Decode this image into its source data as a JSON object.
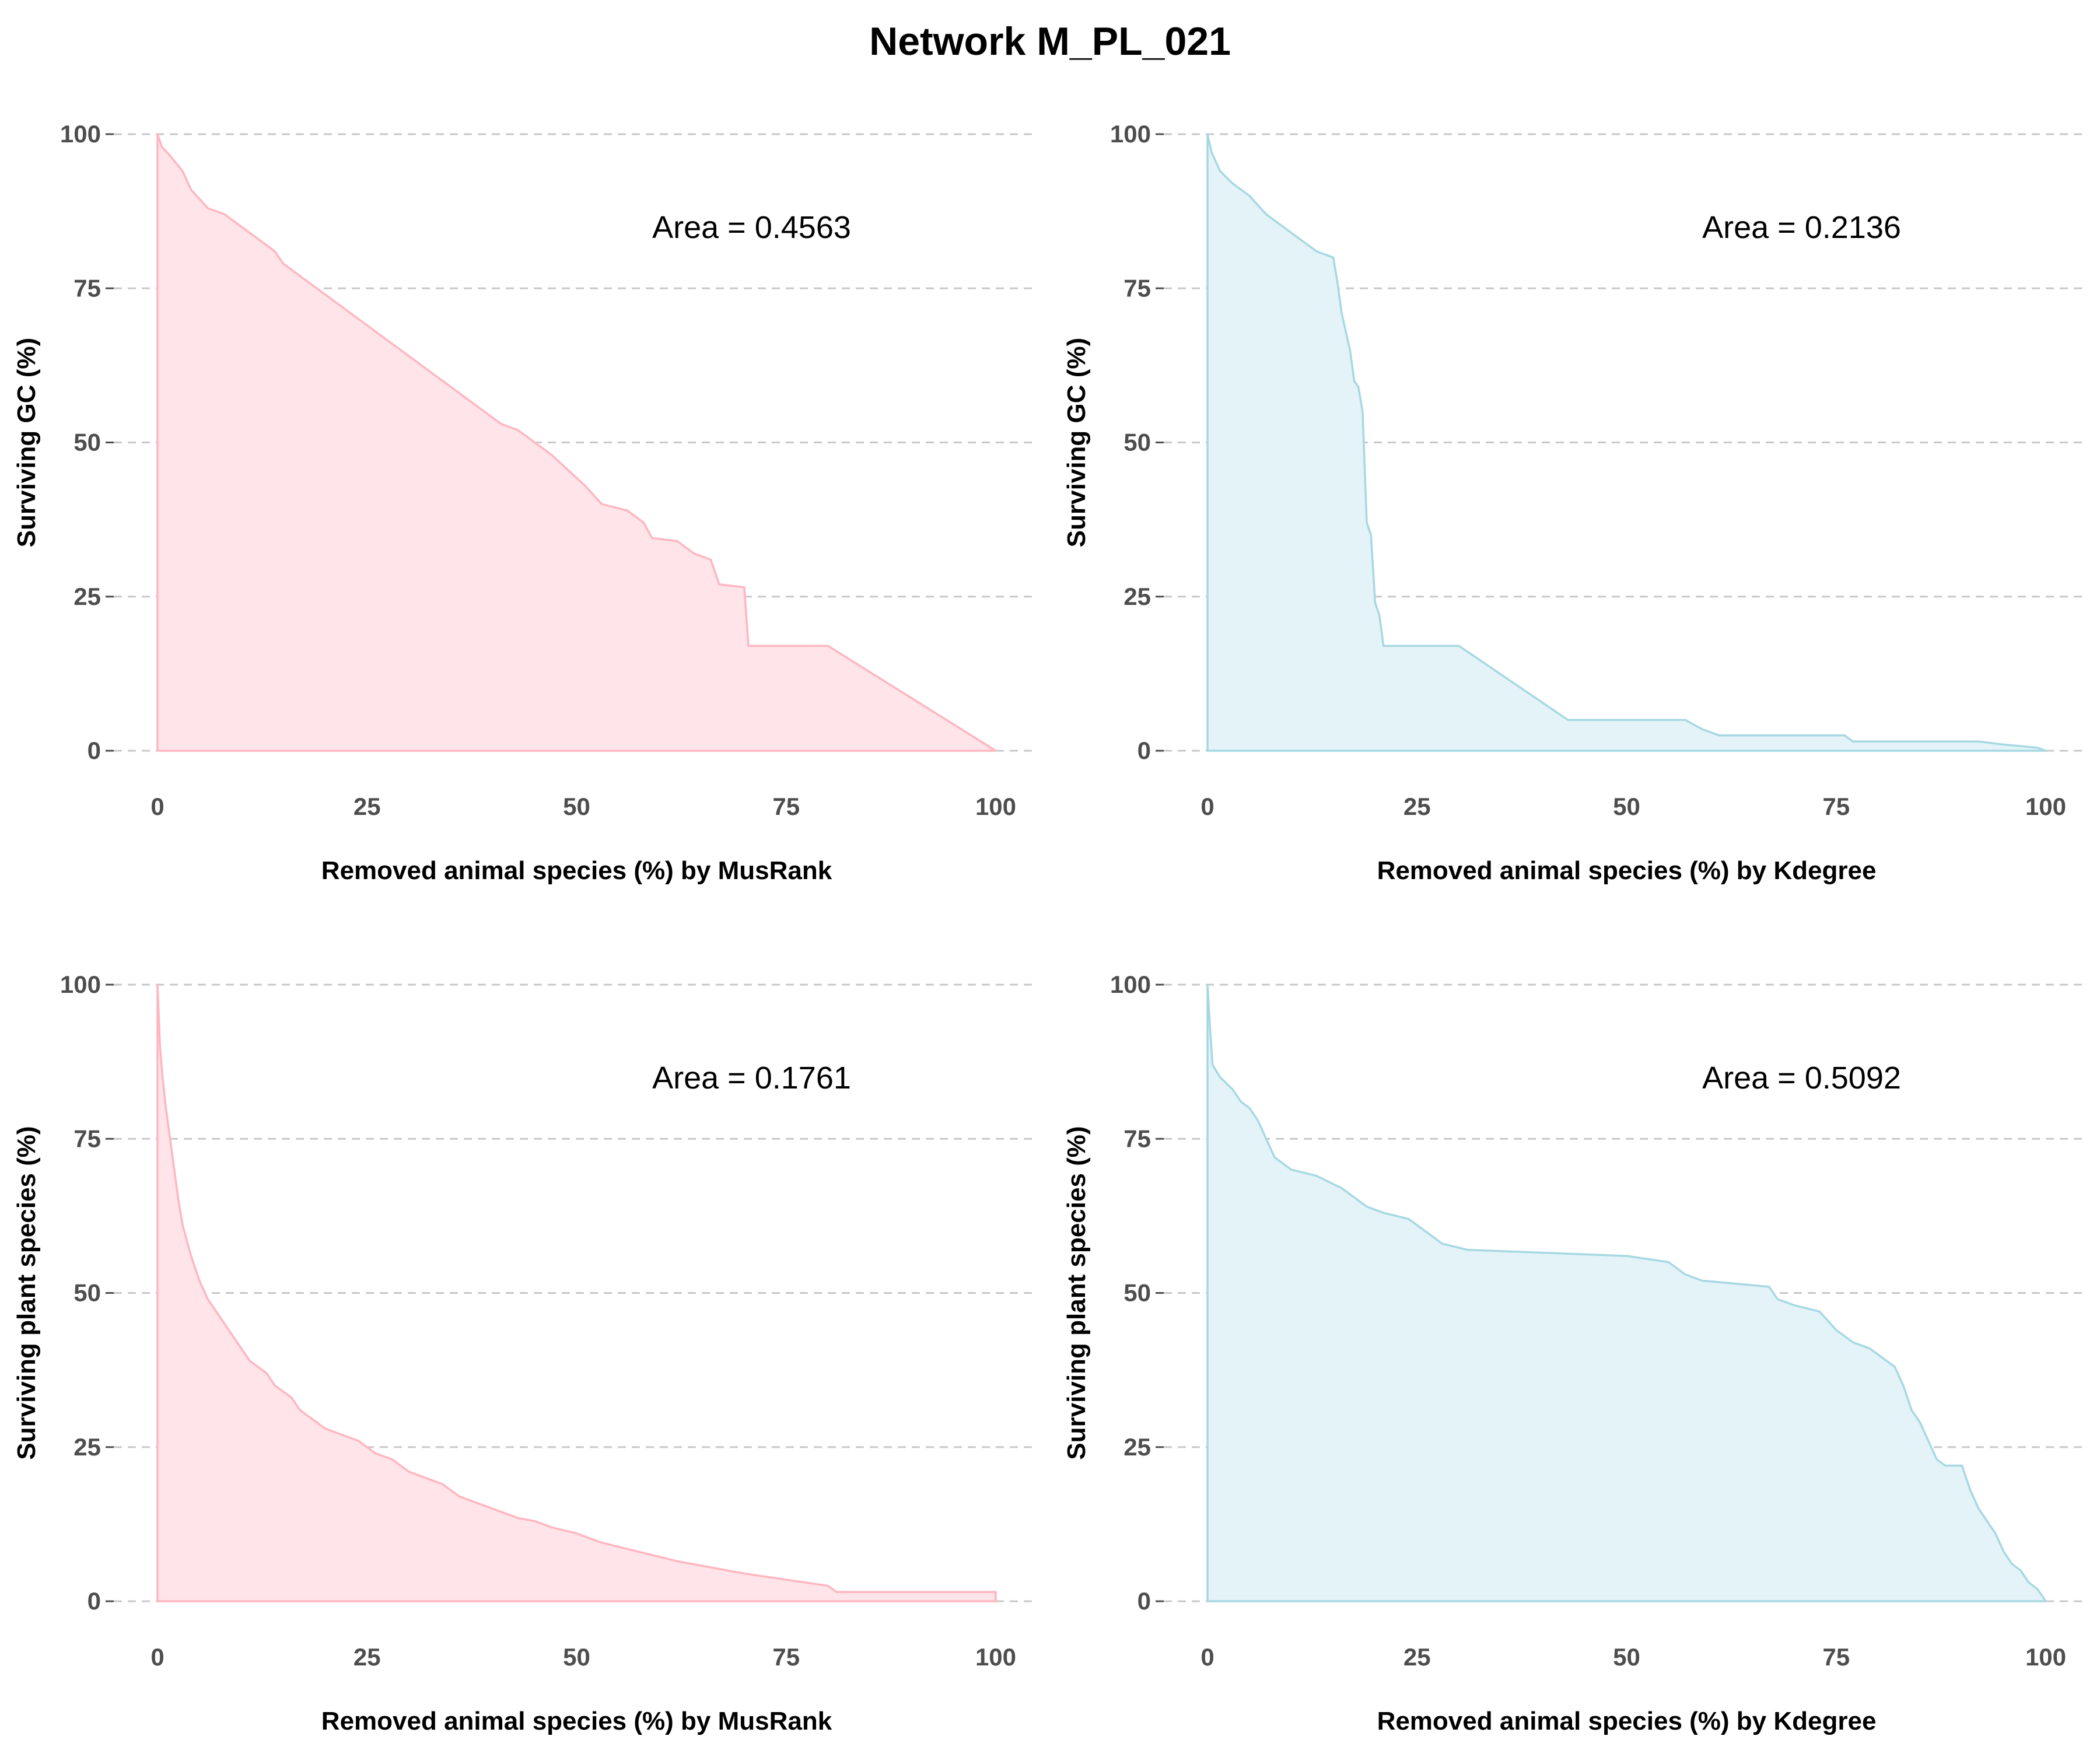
{
  "figure_title": "Network M_PL_021",
  "chart_data": [
    {
      "type": "area",
      "area_label": "Area = 0.4563",
      "xlabel": "Removed animal species (%) by MusRank",
      "ylabel": "Surviving GC (%)",
      "xlim": [
        0,
        100
      ],
      "ylim": [
        0,
        100
      ],
      "xticks": [
        "0",
        "25",
        "50",
        "75",
        "100"
      ],
      "yticks": [
        "0",
        "25",
        "50",
        "75",
        "100"
      ],
      "grid": "horizontal dashed",
      "color": "#ffb6c1",
      "fill": "#ffe4e9",
      "points": [
        [
          0,
          100
        ],
        [
          0.5,
          98
        ],
        [
          1.5,
          96.5
        ],
        [
          3,
          94
        ],
        [
          4,
          91
        ],
        [
          5,
          89.5
        ],
        [
          6,
          88
        ],
        [
          8,
          87
        ],
        [
          10,
          85
        ],
        [
          12,
          83
        ],
        [
          14,
          81
        ],
        [
          15,
          79
        ],
        [
          17,
          77
        ],
        [
          19,
          75
        ],
        [
          21,
          73
        ],
        [
          23,
          71
        ],
        [
          25,
          69
        ],
        [
          27,
          67
        ],
        [
          29,
          65
        ],
        [
          31,
          63
        ],
        [
          33,
          61
        ],
        [
          35,
          59
        ],
        [
          37,
          57
        ],
        [
          39,
          55
        ],
        [
          41,
          53
        ],
        [
          43,
          52
        ],
        [
          45,
          50
        ],
        [
          47,
          48
        ],
        [
          49,
          45.5
        ],
        [
          51,
          43
        ],
        [
          53,
          40
        ],
        [
          56,
          39
        ],
        [
          58,
          37
        ],
        [
          59,
          34.5
        ],
        [
          62,
          34
        ],
        [
          64,
          32
        ],
        [
          66,
          31
        ],
        [
          67,
          27
        ],
        [
          70,
          26.5
        ],
        [
          70.5,
          17
        ],
        [
          80,
          17
        ],
        [
          100,
          0
        ]
      ]
    },
    {
      "type": "area",
      "area_label": "Area = 0.2136",
      "xlabel": "Removed animal species (%) by Kdegree",
      "ylabel": "Surviving GC (%)",
      "xlim": [
        0,
        100
      ],
      "ylim": [
        0,
        100
      ],
      "xticks": [
        "0",
        "25",
        "50",
        "75",
        "100"
      ],
      "yticks": [
        "0",
        "25",
        "50",
        "75",
        "100"
      ],
      "grid": "horizontal dashed",
      "color": "#a6d8e3",
      "fill": "#e3f3f7",
      "points": [
        [
          0,
          100
        ],
        [
          0.5,
          97
        ],
        [
          1.5,
          94
        ],
        [
          3,
          92
        ],
        [
          5,
          90
        ],
        [
          7,
          87
        ],
        [
          10,
          84
        ],
        [
          13,
          81
        ],
        [
          15,
          80
        ],
        [
          15.5,
          76
        ],
        [
          16,
          71
        ],
        [
          17,
          65
        ],
        [
          17.5,
          60
        ],
        [
          18,
          59
        ],
        [
          18.5,
          55
        ],
        [
          19,
          37
        ],
        [
          19.5,
          35
        ],
        [
          20,
          24
        ],
        [
          20.5,
          22
        ],
        [
          21,
          17
        ],
        [
          30,
          17
        ],
        [
          43,
          5
        ],
        [
          57,
          5
        ],
        [
          59,
          3.5
        ],
        [
          61,
          2.5
        ],
        [
          76,
          2.5
        ],
        [
          77,
          1.5
        ],
        [
          92,
          1.5
        ],
        [
          95,
          1
        ],
        [
          99,
          0.5
        ],
        [
          100,
          0
        ]
      ]
    },
    {
      "type": "area",
      "area_label": "Area = 0.1761",
      "xlabel": "Removed animal species (%) by MusRank",
      "ylabel": "Surviving plant species (%)",
      "xlim": [
        0,
        100
      ],
      "ylim": [
        0,
        100
      ],
      "xticks": [
        "0",
        "25",
        "50",
        "75",
        "100"
      ],
      "yticks": [
        "0",
        "25",
        "50",
        "75",
        "100"
      ],
      "grid": "horizontal dashed",
      "color": "#ffb6c1",
      "fill": "#ffe4e9",
      "points": [
        [
          0,
          100
        ],
        [
          0.3,
          90
        ],
        [
          0.6,
          85
        ],
        [
          1,
          80
        ],
        [
          1.5,
          75
        ],
        [
          2,
          70
        ],
        [
          2.5,
          65
        ],
        [
          3,
          61
        ],
        [
          4,
          56
        ],
        [
          5,
          52
        ],
        [
          6,
          49
        ],
        [
          7,
          47
        ],
        [
          8,
          45
        ],
        [
          9,
          43
        ],
        [
          10,
          41
        ],
        [
          11,
          39
        ],
        [
          12,
          38
        ],
        [
          13,
          37
        ],
        [
          14,
          35
        ],
        [
          15,
          34
        ],
        [
          16,
          33
        ],
        [
          17,
          31
        ],
        [
          18,
          30
        ],
        [
          19,
          29
        ],
        [
          20,
          28
        ],
        [
          22,
          27
        ],
        [
          24,
          26
        ],
        [
          26,
          24
        ],
        [
          28,
          23
        ],
        [
          30,
          21
        ],
        [
          32,
          20
        ],
        [
          34,
          19
        ],
        [
          36,
          17
        ],
        [
          38,
          16
        ],
        [
          40,
          15
        ],
        [
          43,
          13.5
        ],
        [
          45,
          13
        ],
        [
          47,
          12
        ],
        [
          50,
          11
        ],
        [
          53,
          9.5
        ],
        [
          56,
          8.5
        ],
        [
          59,
          7.5
        ],
        [
          62,
          6.5
        ],
        [
          66,
          5.5
        ],
        [
          70,
          4.5
        ],
        [
          75,
          3.5
        ],
        [
          80,
          2.5
        ],
        [
          81,
          1.5
        ],
        [
          100,
          1.5
        ],
        [
          100,
          0
        ]
      ]
    },
    {
      "type": "area",
      "area_label": "Area = 0.5092",
      "xlabel": "Removed animal species (%) by Kdegree",
      "ylabel": "Surviving plant species (%)",
      "xlim": [
        0,
        100
      ],
      "ylim": [
        0,
        100
      ],
      "xticks": [
        "0",
        "25",
        "50",
        "75",
        "100"
      ],
      "yticks": [
        "0",
        "25",
        "50",
        "75",
        "100"
      ],
      "grid": "horizontal dashed",
      "color": "#a6d8e3",
      "fill": "#e3f3f7",
      "points": [
        [
          0,
          100
        ],
        [
          0.3,
          93
        ],
        [
          0.6,
          87
        ],
        [
          1.5,
          85
        ],
        [
          3,
          83
        ],
        [
          4,
          81
        ],
        [
          5,
          80
        ],
        [
          6,
          78
        ],
        [
          7,
          75
        ],
        [
          8,
          72
        ],
        [
          10,
          70
        ],
        [
          13,
          69
        ],
        [
          16,
          67
        ],
        [
          19,
          64
        ],
        [
          21,
          63
        ],
        [
          24,
          62
        ],
        [
          26,
          60
        ],
        [
          28,
          58
        ],
        [
          31,
          57
        ],
        [
          50,
          56
        ],
        [
          55,
          55
        ],
        [
          57,
          53
        ],
        [
          59,
          52
        ],
        [
          67,
          51
        ],
        [
          68,
          49
        ],
        [
          70,
          48
        ],
        [
          73,
          47
        ],
        [
          75,
          44
        ],
        [
          77,
          42
        ],
        [
          79,
          41
        ],
        [
          82,
          38
        ],
        [
          83,
          35
        ],
        [
          84,
          31
        ],
        [
          85,
          29
        ],
        [
          86,
          26
        ],
        [
          87,
          23
        ],
        [
          88,
          22
        ],
        [
          90,
          22
        ],
        [
          91,
          18
        ],
        [
          92,
          15
        ],
        [
          93,
          13
        ],
        [
          94,
          11
        ],
        [
          95,
          8
        ],
        [
          96,
          6
        ],
        [
          97,
          5
        ],
        [
          98,
          3
        ],
        [
          99,
          2
        ],
        [
          100,
          0
        ]
      ]
    }
  ]
}
